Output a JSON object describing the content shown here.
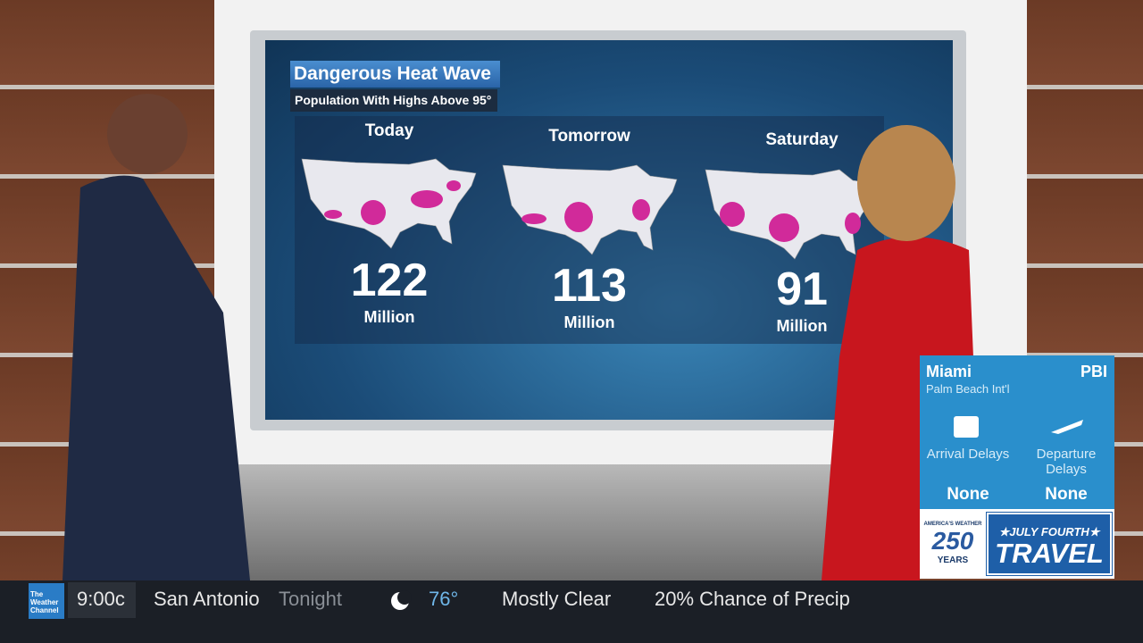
{
  "screen": {
    "title": "Dangerous Heat Wave",
    "subtitle": "Population With Highs Above 95°",
    "panels": [
      {
        "day": "Today",
        "value": 122,
        "unit": "Million"
      },
      {
        "day": "Tomorrow",
        "value": 113,
        "unit": "Million"
      },
      {
        "day": "Saturday",
        "value": 91,
        "unit": "Million"
      }
    ]
  },
  "airport_card": {
    "city": "Miami",
    "code": "PBI",
    "airport": "Palm Beach Int'l",
    "arrival_label": "Arrival Delays",
    "arrival_value": "None",
    "departure_label": "Departure Delays",
    "departure_value": "None"
  },
  "promo": {
    "badge_top": "AMERICA'S WEATHER",
    "badge_number": "250",
    "badge_bottom": "YEARS",
    "headline": "★JULY FOURTH★",
    "headline_big": "TRAVEL"
  },
  "ticker": {
    "logo": "The Weather Channel",
    "time": "9:00c",
    "city": "San Antonio",
    "period": "Tonight",
    "temperature": "76°",
    "condition": "Mostly Clear",
    "precip": "20% Chance of Precip"
  }
}
